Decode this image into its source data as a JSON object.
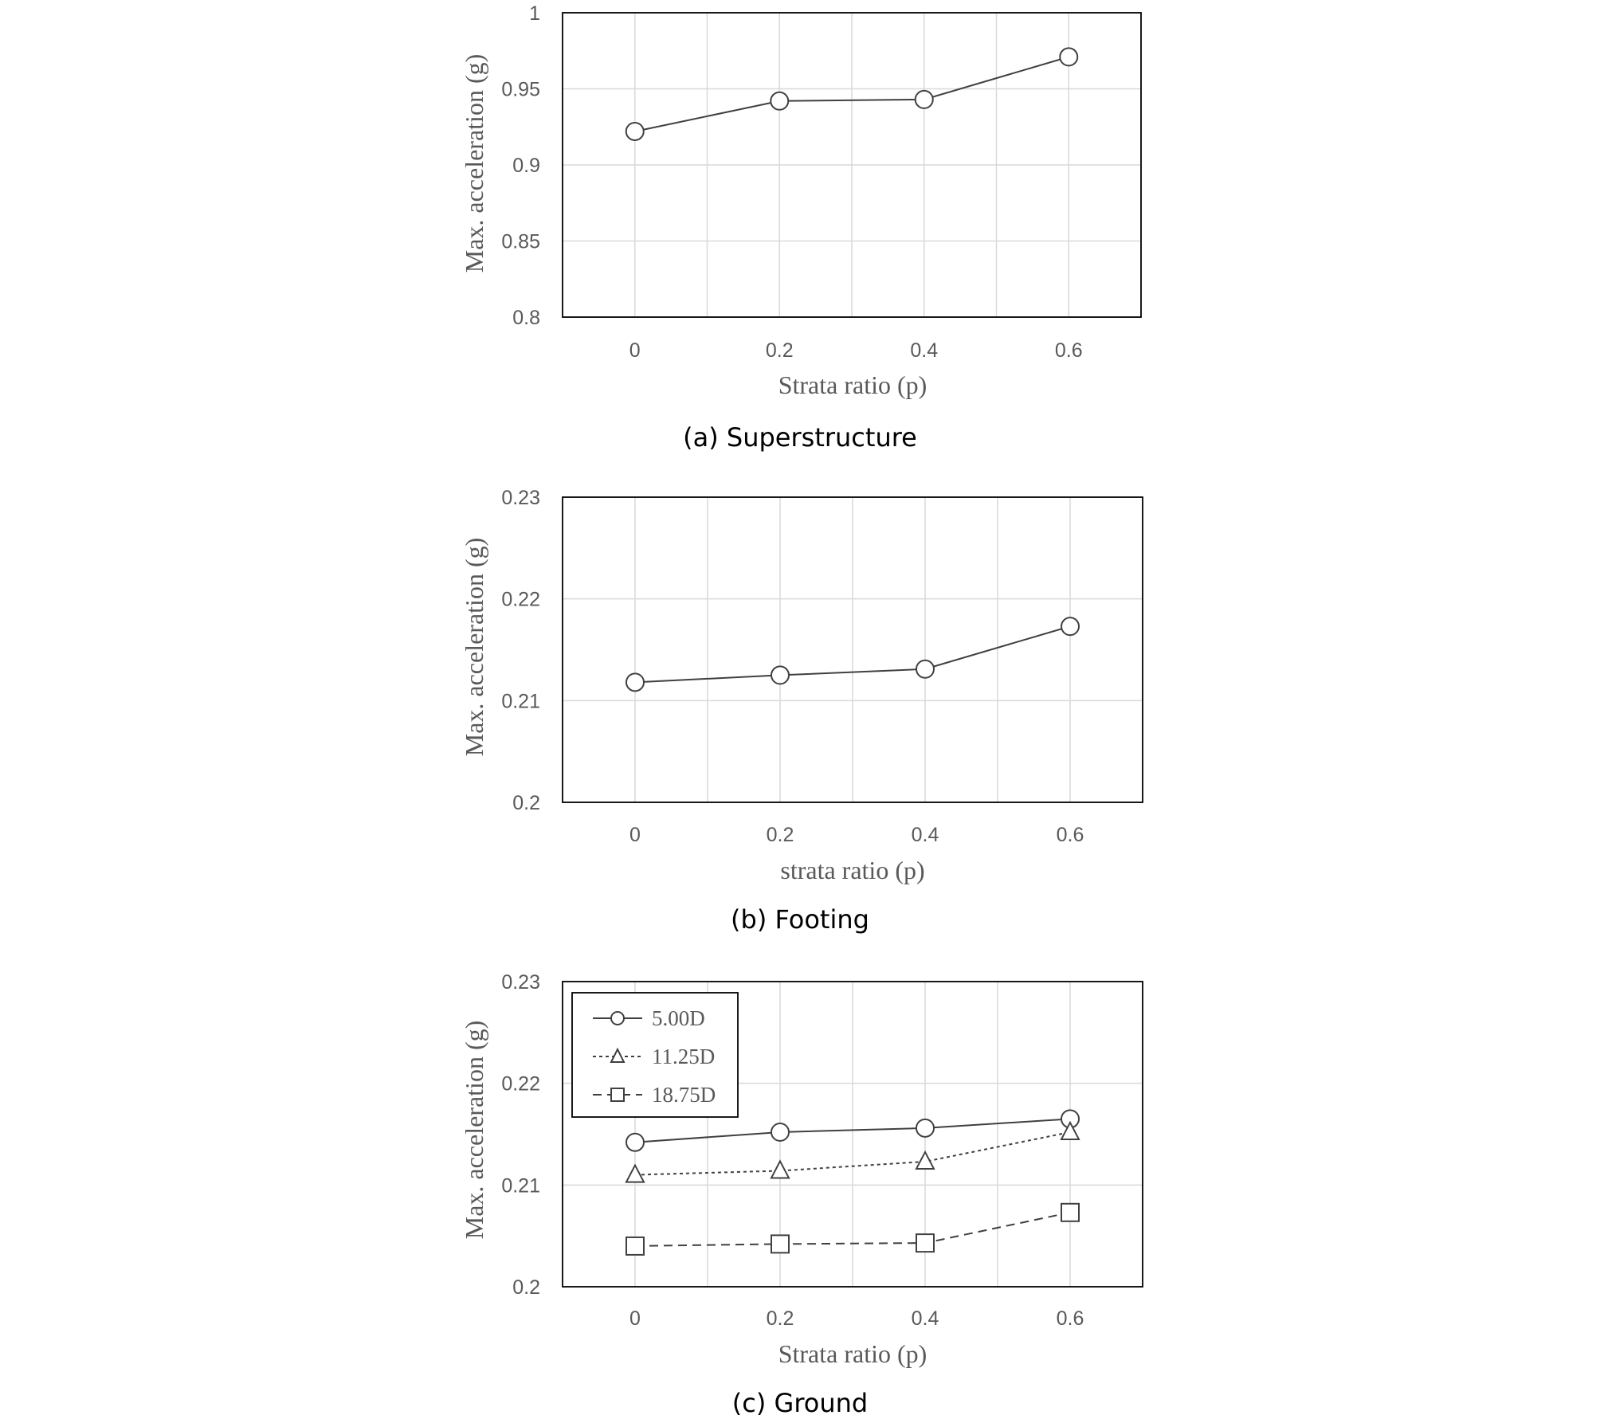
{
  "chart_data": [
    {
      "type": "line",
      "caption": "(a) Superstructure",
      "xlabel": "Strata ratio (p)",
      "ylabel": "Max. acceleration (g)",
      "x": [
        0,
        0.2,
        0.4,
        0.6
      ],
      "xticks": [
        "0",
        "0.2",
        "0.4",
        "0.6"
      ],
      "xlim": [
        -0.1,
        0.7
      ],
      "ylim": [
        0.8,
        1
      ],
      "yticks": [
        "0.8",
        "0.85",
        "0.9",
        "0.95",
        "1"
      ],
      "yticks_values": [
        0.8,
        0.85,
        0.9,
        0.95,
        1
      ],
      "grid": true,
      "legend": null,
      "series": [
        {
          "values": [
            0.922,
            0.942,
            0.943,
            0.971
          ],
          "marker": "circle",
          "line": "solid"
        }
      ]
    },
    {
      "type": "line",
      "caption": "(b) Footing",
      "xlabel": "strata ratio (p)",
      "ylabel": "Max. acceleration (g)",
      "x": [
        0,
        0.2,
        0.4,
        0.6
      ],
      "xticks": [
        "0",
        "0.2",
        "0.4",
        "0.6"
      ],
      "xlim": [
        -0.1,
        0.7
      ],
      "ylim": [
        0.2,
        0.23
      ],
      "yticks": [
        "0.2",
        "0.21",
        "0.22",
        "0.23"
      ],
      "yticks_values": [
        0.2,
        0.21,
        0.22,
        0.23
      ],
      "grid": true,
      "legend": null,
      "series": [
        {
          "values": [
            0.2118,
            0.2125,
            0.2131,
            0.2173
          ],
          "marker": "circle",
          "line": "solid"
        }
      ]
    },
    {
      "type": "line",
      "caption": "(c) Ground",
      "xlabel": "Strata ratio (p)",
      "ylabel": "Max. acceleration (g)",
      "x": [
        0,
        0.2,
        0.4,
        0.6
      ],
      "xticks": [
        "0",
        "0.2",
        "0.4",
        "0.6"
      ],
      "xlim": [
        -0.1,
        0.7
      ],
      "ylim": [
        0.2,
        0.23
      ],
      "yticks": [
        "0.2",
        "0.21",
        "0.22",
        "0.23"
      ],
      "yticks_values": [
        0.2,
        0.21,
        0.22,
        0.23
      ],
      "grid": true,
      "legend": "top-left",
      "series": [
        {
          "name": "5.00D",
          "values": [
            0.2142,
            0.2152,
            0.2156,
            0.2165
          ],
          "marker": "circle",
          "line": "solid"
        },
        {
          "name": "11.25D",
          "values": [
            0.211,
            0.2114,
            0.2123,
            0.2152
          ],
          "marker": "triangle",
          "line": "dotted"
        },
        {
          "name": "18.75D",
          "values": [
            0.204,
            0.2042,
            0.2043,
            0.2073
          ],
          "marker": "square",
          "line": "dashed"
        }
      ]
    }
  ]
}
